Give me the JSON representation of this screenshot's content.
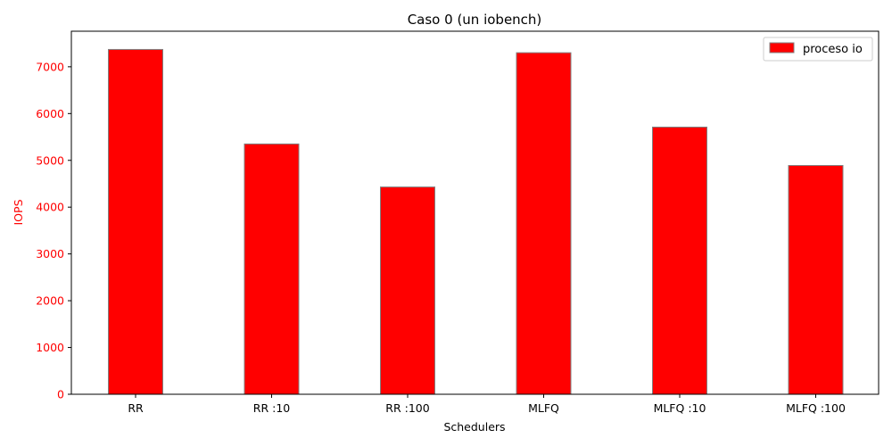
{
  "chart_data": {
    "type": "bar",
    "title": "Caso 0 (un iobench)",
    "xlabel": "Schedulers",
    "ylabel": "IOPS",
    "categories": [
      "RR",
      "RR :10",
      "RR :100",
      "MLFQ",
      "MLFQ :10",
      "MLFQ :100"
    ],
    "series": [
      {
        "name": "proceso io",
        "values": [
          7370,
          5350,
          4430,
          7300,
          5710,
          4890
        ]
      }
    ],
    "ylim": [
      0,
      7760
    ],
    "yticks": [
      0,
      1000,
      2000,
      3000,
      4000,
      5000,
      6000,
      7000
    ],
    "grid": false,
    "legend_position": "top-right",
    "colors": {
      "bar_fill": "#ff0000",
      "bar_edge": "#808080",
      "ylabel_color": "#ff0000",
      "ytick_color": "#ff0000",
      "axis_color": "#000000"
    }
  }
}
